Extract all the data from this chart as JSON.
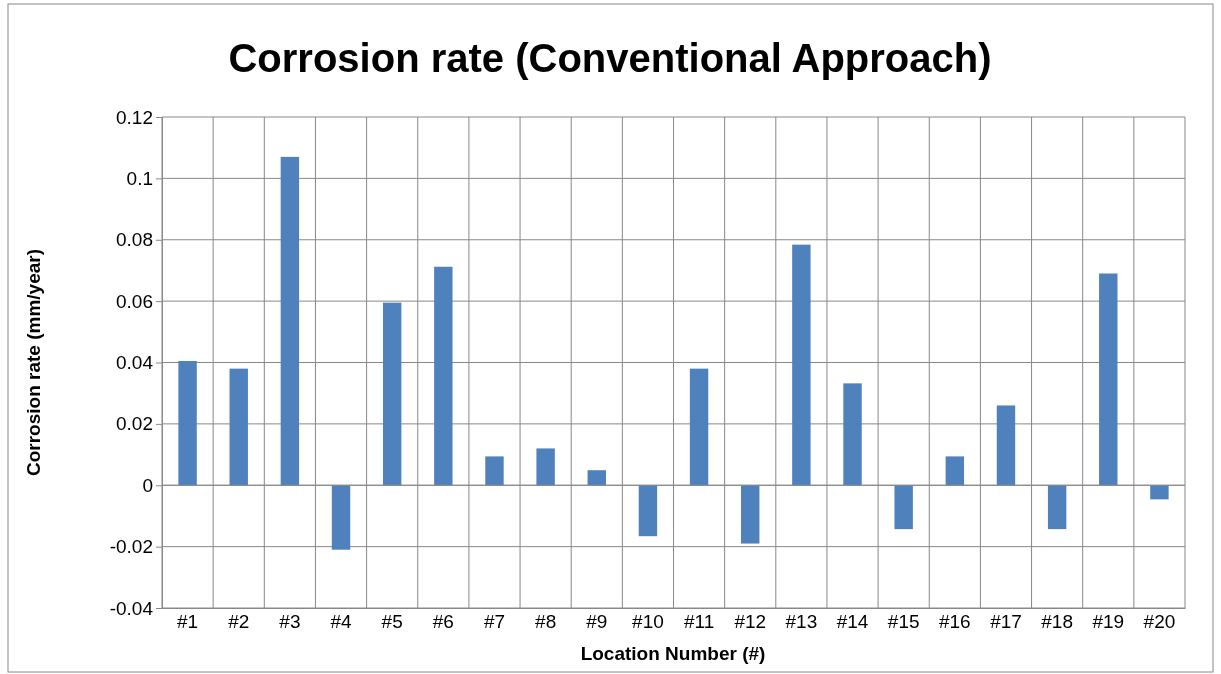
{
  "chart_data": {
    "type": "bar",
    "title": "Corrosion rate (Conventional Approach)",
    "xlabel": "Location Number (#)",
    "ylabel": "Corrosion rate (mm/year)",
    "categories": [
      "#1",
      "#2",
      "#3",
      "#4",
      "#5",
      "#6",
      "#7",
      "#8",
      "#9",
      "#10",
      "#11",
      "#12",
      "#13",
      "#14",
      "#15",
      "#16",
      "#17",
      "#18",
      "#19",
      "#20"
    ],
    "values": [
      0.0405,
      0.038,
      0.107,
      -0.021,
      0.0595,
      0.0712,
      0.0094,
      0.012,
      0.0049,
      -0.0166,
      0.038,
      -0.019,
      0.0784,
      0.0332,
      -0.0143,
      0.0094,
      0.026,
      -0.0143,
      0.069,
      -0.0046
    ],
    "color": "#4f81bd",
    "ylim": [
      -0.04,
      0.12
    ],
    "yticks": [
      -0.04,
      -0.02,
      0,
      0.02,
      0.04,
      0.06,
      0.08,
      0.1,
      0.12
    ],
    "grid": true
  }
}
